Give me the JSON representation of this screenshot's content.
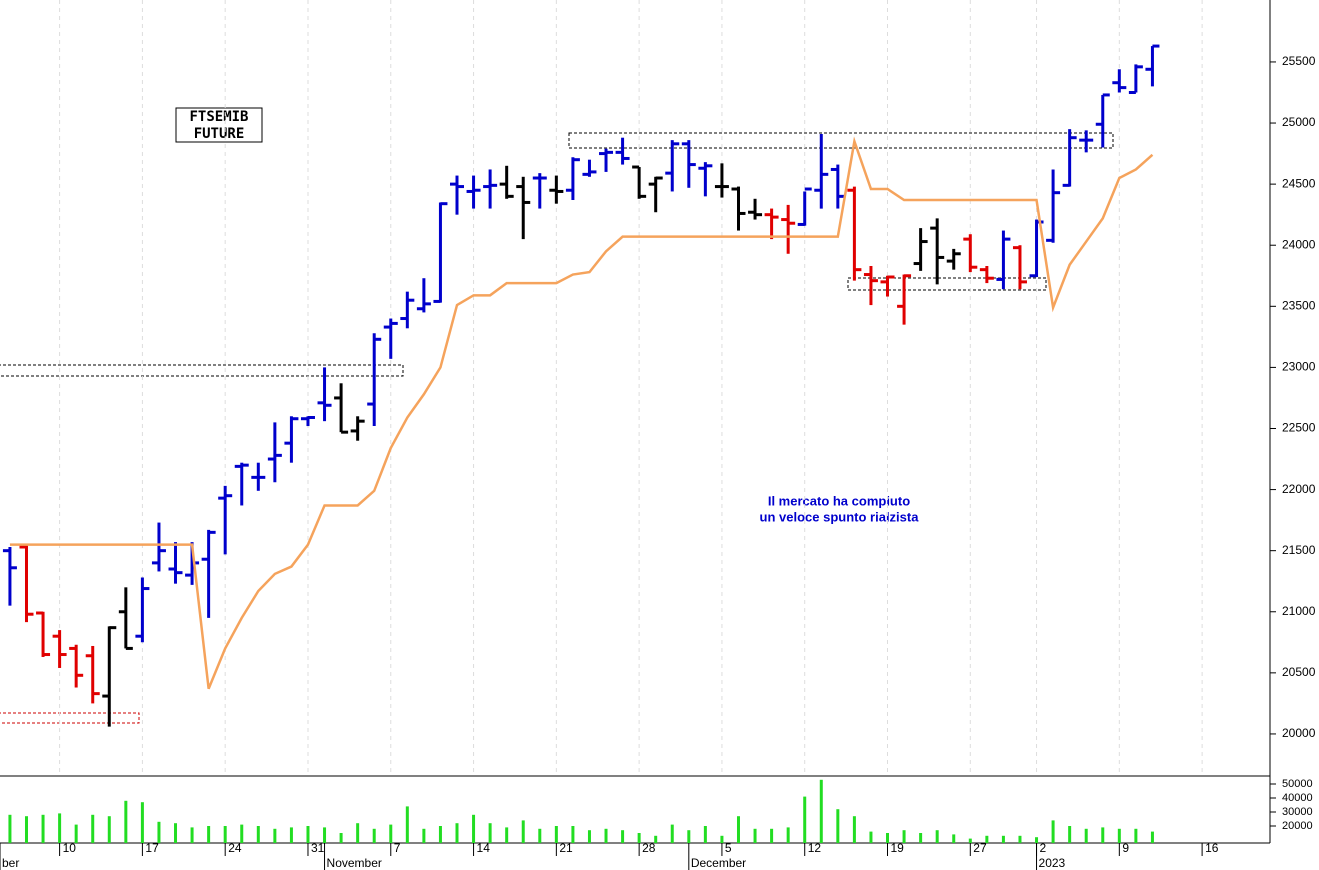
{
  "chart_data": {
    "type": "ohlc",
    "title_lines": [
      "FTSEMIB",
      "FUTURE"
    ],
    "annotation_lines": [
      "Il mercato ha compiuto",
      "un veloce spunto rialzista"
    ],
    "months": [
      {
        "value": -0.6,
        "label": "ber"
      },
      {
        "value": 19,
        "label": "November"
      },
      {
        "value": 41,
        "label": "December"
      },
      {
        "value": 62,
        "label": "2023"
      }
    ],
    "xlim": [
      -0.6,
      76.1
    ],
    "xticks": [
      {
        "value": 3,
        "label": "10"
      },
      {
        "value": 8,
        "label": "17"
      },
      {
        "value": 13,
        "label": "24"
      },
      {
        "value": 18,
        "label": "31"
      },
      {
        "value": 23,
        "label": "7"
      },
      {
        "value": 28,
        "label": "14"
      },
      {
        "value": 33,
        "label": "21"
      },
      {
        "value": 38,
        "label": "28"
      },
      {
        "value": 43,
        "label": "5"
      },
      {
        "value": 48,
        "label": "12"
      },
      {
        "value": 53,
        "label": "19"
      },
      {
        "value": 58,
        "label": "27"
      },
      {
        "value": 62,
        "label": "2"
      },
      {
        "value": 67,
        "label": "9"
      },
      {
        "value": 72,
        "label": "16"
      }
    ],
    "ylim": [
      19664,
      26007
    ],
    "yticks": [
      20000,
      20500,
      21000,
      21500,
      22000,
      22500,
      23000,
      23500,
      24000,
      24500,
      25000,
      25500
    ],
    "grid": true,
    "open": [
      21500,
      21530,
      20990,
      20800,
      20700,
      20640,
      20310,
      21000,
      20800,
      21400,
      21350,
      21300,
      21430,
      21930,
      22190,
      22100,
      22250,
      22380,
      22580,
      22710,
      22750,
      22480,
      22700,
      23330,
      23400,
      23480,
      23540,
      24500,
      24440,
      24480,
      24500,
      24480,
      24550,
      24450,
      24450,
      24580,
      24750,
      24760,
      24640,
      24500,
      24590,
      24830,
      24630,
      24480,
      24460,
      24270,
      24250,
      24210,
      24170,
      24450,
      24620,
      24450,
      23760,
      23700,
      23500,
      23850,
      24140,
      23870,
      24050,
      23800,
      23720,
      23980,
      23750,
      24040,
      24490,
      24860,
      24990,
      25330,
      25250,
      25440
    ],
    "high": [
      21530,
      21545,
      21000,
      20850,
      20730,
      20720,
      20880,
      21200,
      21280,
      21730,
      21570,
      21570,
      21670,
      22030,
      22220,
      22220,
      22550,
      22600,
      22600,
      23000,
      22870,
      22600,
      23280,
      23400,
      23620,
      23730,
      24350,
      24570,
      24570,
      24620,
      24650,
      24560,
      24590,
      24570,
      24720,
      24700,
      24790,
      24880,
      24640,
      24560,
      24860,
      24860,
      24680,
      24670,
      24480,
      24380,
      24300,
      24330,
      24440,
      24910,
      24660,
      24480,
      23830,
      23750,
      23760,
      24140,
      24220,
      23970,
      24090,
      23830,
      24120,
      24000,
      24210,
      24620,
      24950,
      24940,
      25230,
      25440,
      25480,
      25630
    ],
    "low": [
      21050,
      20915,
      20630,
      20540,
      20380,
      20250,
      20060,
      20700,
      20750,
      21330,
      21230,
      21220,
      20950,
      21470,
      21870,
      21990,
      22060,
      22220,
      22520,
      22560,
      22470,
      22400,
      22520,
      23070,
      23320,
      23450,
      23530,
      24250,
      24300,
      24300,
      24380,
      24050,
      24300,
      24340,
      24370,
      24560,
      24600,
      24660,
      24380,
      24270,
      24440,
      24470,
      24400,
      24390,
      24120,
      24210,
      24050,
      23930,
      24160,
      24300,
      24300,
      23710,
      23510,
      23580,
      23350,
      23790,
      23680,
      23800,
      23780,
      23690,
      23640,
      23640,
      23740,
      24020,
      24480,
      24760,
      24800,
      25250,
      25250,
      25300
    ],
    "close": [
      21360,
      20980,
      20650,
      20650,
      20480,
      20330,
      20870,
      20700,
      21190,
      21500,
      21320,
      21400,
      21650,
      21950,
      22200,
      22100,
      22280,
      22580,
      22590,
      22690,
      22470,
      22560,
      23230,
      23360,
      23550,
      23520,
      24340,
      24480,
      24450,
      24490,
      24400,
      24350,
      24550,
      24440,
      24700,
      24600,
      24760,
      24710,
      24400,
      24550,
      24830,
      24660,
      24650,
      24480,
      24260,
      24250,
      24230,
      24180,
      24460,
      24580,
      24400,
      23800,
      23710,
      23740,
      23750,
      24030,
      23900,
      23930,
      23820,
      23730,
      24050,
      23700,
      24190,
      24430,
      24880,
      24860,
      25230,
      25290,
      25460,
      25630
    ],
    "bar_colors": [
      "#0000cc",
      "#e00000",
      "#e00000",
      "#e00000",
      "#e00000",
      "#e00000",
      "#000000",
      "#000000",
      "#0000cc",
      "#0000cc",
      "#0000cc",
      "#0000cc",
      "#0000cc",
      "#0000cc",
      "#0000cc",
      "#0000cc",
      "#0000cc",
      "#0000cc",
      "#0000cc",
      "#0000cc",
      "#000000",
      "#000000",
      "#0000cc",
      "#0000cc",
      "#0000cc",
      "#0000cc",
      "#0000cc",
      "#0000cc",
      "#0000cc",
      "#0000cc",
      "#000000",
      "#000000",
      "#0000cc",
      "#000000",
      "#0000cc",
      "#0000cc",
      "#0000cc",
      "#0000cc",
      "#000000",
      "#000000",
      "#0000cc",
      "#0000cc",
      "#0000cc",
      "#000000",
      "#000000",
      "#000000",
      "#e00000",
      "#e00000",
      "#0000cc",
      "#0000cc",
      "#0000cc",
      "#e00000",
      "#e00000",
      "#e00000",
      "#e00000",
      "#000000",
      "#000000",
      "#000000",
      "#e00000",
      "#e00000",
      "#0000cc",
      "#e00000",
      "#0000cc",
      "#0000cc",
      "#0000cc",
      "#0000cc",
      "#0000cc",
      "#0000cc",
      "#0000cc",
      "#0000cc"
    ],
    "stop": [
      21550,
      21550,
      21550,
      21550,
      21550,
      21550,
      21550,
      21550,
      21550,
      21550,
      21550,
      21550,
      20370,
      20700,
      20950,
      21170,
      21310,
      21370,
      21550,
      21870,
      21870,
      21870,
      21990,
      22340,
      22590,
      22780,
      23000,
      23510,
      23590,
      23590,
      23690,
      23690,
      23690,
      23690,
      23760,
      23780,
      23950,
      24070,
      24070,
      24070,
      24070,
      24070,
      24070,
      24070,
      24070,
      24070,
      24070,
      24070,
      24070,
      24070,
      24070,
      24850,
      24460,
      24460,
      24370,
      24370,
      24370,
      24370,
      24370,
      24370,
      24370,
      24370,
      24370,
      23490,
      23840,
      24030,
      24220,
      24550,
      24620,
      24740
    ],
    "stop_color": "#f5a35c",
    "volume": [
      28000,
      27000,
      28000,
      29000,
      21000,
      28000,
      27000,
      38000,
      37000,
      23000,
      22000,
      19000,
      20000,
      20000,
      21000,
      20000,
      18000,
      19000,
      20000,
      19000,
      15000,
      22000,
      18000,
      21000,
      34000,
      18000,
      20000,
      22000,
      28000,
      22000,
      19000,
      24000,
      18000,
      20000,
      20000,
      17000,
      18000,
      17000,
      15000,
      13000,
      21000,
      17000,
      20000,
      13000,
      27000,
      18000,
      18000,
      19000,
      41000,
      53000,
      32000,
      27000,
      16000,
      15000,
      17000,
      15000,
      17000,
      14000,
      11000,
      13000,
      13000,
      13000,
      12000,
      24000,
      20000,
      18000,
      19000,
      18000,
      18000,
      16000
    ],
    "volume_color": "#22dd22",
    "vlim": [
      7857,
      55714
    ],
    "vticks": [
      20000,
      30000,
      40000,
      50000
    ]
  }
}
